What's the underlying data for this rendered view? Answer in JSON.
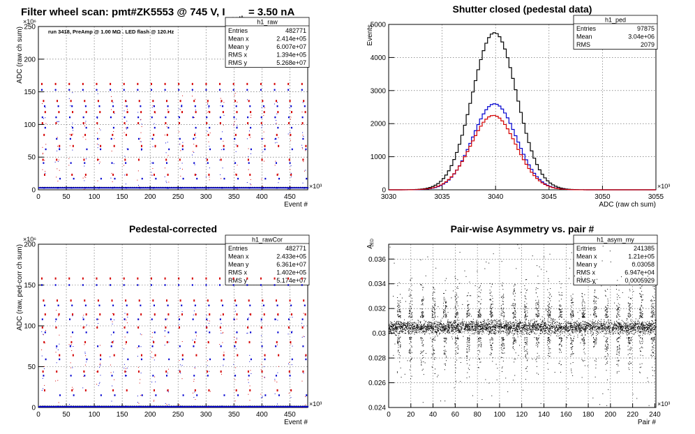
{
  "figure": {
    "main_title_left": "Filter wheel scan: pmt#ZK5553 @   745 V, I",
    "main_title_sub": "cath",
    "main_title_right": "= 3.50 nA"
  },
  "chart_data": [
    {
      "id": "raw",
      "type": "scatter",
      "title": "",
      "annotation": "run 3418, PreAmp @ 1.00 MΩ . LED flash @  120.Hz",
      "xlabel": "Event #",
      "ylabel": "ADC (raw ch sum)",
      "x_exponent": "×10³",
      "y_exponent": "×10⁶",
      "xlim": [
        0,
        482
      ],
      "ylim": [
        0,
        250
      ],
      "xticks": [
        "0",
        "50",
        "100",
        "150",
        "200",
        "250",
        "300",
        "350",
        "400",
        "450"
      ],
      "yticks": [
        "0",
        "50",
        "100",
        "150",
        "200",
        "250"
      ],
      "grid": true,
      "colors": {
        "a": "#d40000",
        "b": "#0000d0",
        "c": "#111111"
      },
      "levels_red": [
        162,
        136,
        119,
        102,
        84,
        67,
        46,
        23
      ],
      "levels_blue": [
        153,
        128,
        111,
        95,
        78,
        62,
        41,
        17,
        3
      ],
      "stats": {
        "name": "h1_raw",
        "rows": [
          {
            "label": "Entries",
            "value": "482771"
          },
          {
            "label": "Mean x",
            "value": "2.414e+05"
          },
          {
            "label": "Mean y",
            "value": "6.007e+07"
          },
          {
            "label": "RMS x",
            "value": "1.394e+05"
          },
          {
            "label": "RMS y",
            "value": "5.268e+07"
          }
        ]
      }
    },
    {
      "id": "ped",
      "type": "line",
      "title": "Shutter closed (pedestal data)",
      "xlabel": "ADC (raw ch sum)",
      "ylabel": "Events",
      "x_exponent": "×10³",
      "xlim": [
        3030,
        3055
      ],
      "ylim": [
        0,
        5000
      ],
      "xticks": [
        "3030",
        "3035",
        "3040",
        "3045",
        "3050",
        "3055"
      ],
      "yticks": [
        "0",
        "1000",
        "2000",
        "3000",
        "4000",
        "5000"
      ],
      "grid": true,
      "colors": {
        "total": "#000000",
        "blue": "#0000d0",
        "red": "#d40000"
      },
      "series": [
        {
          "key": "total",
          "peak": 4750,
          "mean": 3039.9,
          "sigma": 2.08
        },
        {
          "key": "blue",
          "peak": 2600,
          "mean": 3039.9,
          "sigma": 2.05
        },
        {
          "key": "red",
          "peak": 2250,
          "mean": 3039.8,
          "sigma": 2.1
        }
      ],
      "stats": {
        "name": "h1_ped",
        "rows": [
          {
            "label": "Entries",
            "value": "97875"
          },
          {
            "label": "Mean",
            "value": "3.04e+06"
          },
          {
            "label": "RMS",
            "value": "2079"
          }
        ]
      }
    },
    {
      "id": "rawCor",
      "type": "scatter",
      "title": "Pedestal-corrected",
      "xlabel": "Event #",
      "ylabel": "ADC (raw, ped-corr ch sum)",
      "x_exponent": "×10³",
      "y_exponent": "×10⁶",
      "xlim": [
        0,
        482
      ],
      "ylim": [
        0,
        200
      ],
      "xticks": [
        "0",
        "50",
        "100",
        "150",
        "200",
        "250",
        "300",
        "350",
        "400",
        "450"
      ],
      "yticks": [
        "0",
        "50",
        "100",
        "150",
        "200"
      ],
      "grid": true,
      "colors": {
        "a": "#d40000",
        "b": "#0000d0",
        "c": "#111111"
      },
      "levels_red": [
        158,
        131,
        114,
        98,
        80,
        64,
        44,
        21
      ],
      "levels_blue": [
        150,
        125,
        108,
        92,
        75,
        59,
        39,
        15,
        1
      ],
      "stats": {
        "name": "h1_rawCor",
        "rows": [
          {
            "label": "Entries",
            "value": "482771"
          },
          {
            "label": "Mean x",
            "value": "2.433e+05"
          },
          {
            "label": "Mean y",
            "value": "6.361e+07"
          },
          {
            "label": "RMS x",
            "value": "1.402e+05"
          },
          {
            "label": "RMS y",
            "value": "5.174e+07"
          }
        ]
      }
    },
    {
      "id": "asym",
      "type": "scatter",
      "title": "Pair-wise Asymmetry vs. pair #",
      "xlabel": "Pair #",
      "ylabel": "A",
      "ylabel_sub": "LED",
      "x_exponent": "×10³",
      "xlim": [
        0,
        241
      ],
      "ylim": [
        0.024,
        0.0372
      ],
      "xticks": [
        "0",
        "20",
        "40",
        "60",
        "80",
        "100",
        "120",
        "140",
        "160",
        "180",
        "200",
        "220",
        "240"
      ],
      "yticks": [
        "0.024",
        "0.026",
        "0.028",
        "0.03",
        "0.032",
        "0.034",
        "0.036"
      ],
      "grid": true,
      "colors": {
        "points": "#000000"
      },
      "band_center": 0.0305,
      "band_half_width": 0.0005,
      "stats": {
        "name": "h1_asym_my",
        "rows": [
          {
            "label": "Entries",
            "value": "241385"
          },
          {
            "label": "Mean x",
            "value": "1.21e+05"
          },
          {
            "label": "Mean y",
            "value": "0.03058"
          },
          {
            "label": "RMS x",
            "value": "6.947e+04"
          },
          {
            "label": "RMS y",
            "value": "0.0005929"
          }
        ]
      }
    }
  ]
}
